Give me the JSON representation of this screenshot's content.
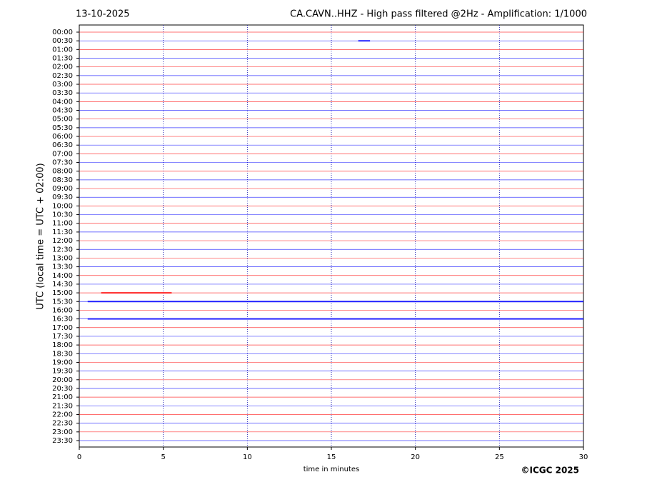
{
  "chart_data": {
    "type": "helicorder",
    "date": "13-10-2025",
    "title": "CA.CAVN..HHZ - High pass filtered @2Hz - Amplification: 1/1000",
    "ylabel": "UTC (local time = UTC + 02:00)",
    "xlabel": "time in minutes",
    "copyright": "©ICGC 2025",
    "categories": [
      "00:00",
      "00:30",
      "01:00",
      "01:30",
      "02:00",
      "02:30",
      "03:00",
      "03:30",
      "04:00",
      "04:30",
      "05:00",
      "05:30",
      "06:00",
      "06:30",
      "07:00",
      "07:30",
      "08:00",
      "08:30",
      "09:00",
      "09:30",
      "10:00",
      "10:30",
      "11:00",
      "11:30",
      "12:00",
      "12:30",
      "13:00",
      "13:30",
      "14:00",
      "14:30",
      "15:00",
      "15:30",
      "16:00",
      "16:30",
      "17:00",
      "17:30",
      "18:00",
      "18:30",
      "19:00",
      "19:30",
      "20:00",
      "20:30",
      "21:00",
      "21:30",
      "22:00",
      "22:30",
      "23:00",
      "23:30"
    ],
    "colors": [
      "#ff0000",
      "#0000ff"
    ],
    "xlim": [
      0,
      30
    ],
    "xticks": [
      0,
      5,
      10,
      15,
      20,
      25,
      30
    ],
    "grid": true,
    "events": [
      {
        "row": 1,
        "x": [
          16.6,
          17.3
        ]
      },
      {
        "row": 30,
        "x": [
          1.3,
          5.5
        ]
      },
      {
        "row": 33,
        "x": [
          0.5,
          30
        ]
      },
      {
        "row": 31,
        "x": [
          0.5,
          30
        ]
      }
    ]
  }
}
